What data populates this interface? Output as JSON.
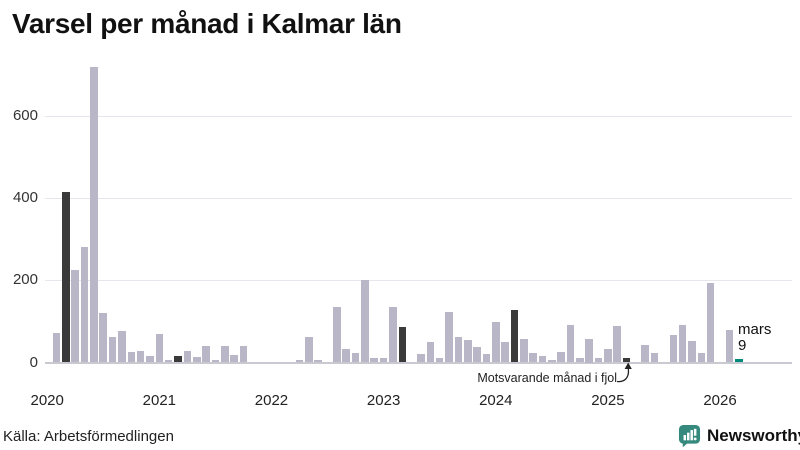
{
  "title": "Varsel per månad i Kalmar län",
  "source": "Källa: Arbetsförmedlingen",
  "annotation": {
    "text": "Motsvarande månad i fjol"
  },
  "latest_label": {
    "month": "mars",
    "value": "9"
  },
  "branding": {
    "name": "Newsworthy",
    "color": "#35897d"
  },
  "colors": {
    "bar_default": "#b9b7c7",
    "bar_dark": "#3a3a3a",
    "bar_teal": "#00897d",
    "gridline": "#e6e6ec",
    "baseline": "#c9c9d2",
    "brand_teal": "#35897d"
  },
  "chart_data": {
    "type": "bar",
    "title": "Varsel per månad i Kalmar län",
    "xlabel": "",
    "ylabel": "",
    "ylim": [
      0,
      740
    ],
    "yticks": [
      0,
      200,
      400,
      600
    ],
    "grid": true,
    "legend": false,
    "x_tick_labels": [
      "2020",
      "2021",
      "2022",
      "2023",
      "2024",
      "2025",
      "2026"
    ],
    "highlight_meaning": {
      "dark": "mars (samma månad) tidigare år",
      "teal": "senaste månaden: mars 2026 = 9"
    },
    "points": [
      {
        "month": "2020-01",
        "value": 0,
        "highlight": null
      },
      {
        "month": "2020-02",
        "value": 72,
        "highlight": null
      },
      {
        "month": "2020-03",
        "value": 415,
        "highlight": "dark"
      },
      {
        "month": "2020-04",
        "value": 226,
        "highlight": null
      },
      {
        "month": "2020-05",
        "value": 281,
        "highlight": null
      },
      {
        "month": "2020-06",
        "value": 720,
        "highlight": null
      },
      {
        "month": "2020-07",
        "value": 120,
        "highlight": null
      },
      {
        "month": "2020-08",
        "value": 63,
        "highlight": null
      },
      {
        "month": "2020-09",
        "value": 76,
        "highlight": null
      },
      {
        "month": "2020-10",
        "value": 25,
        "highlight": null
      },
      {
        "month": "2020-11",
        "value": 28,
        "highlight": null
      },
      {
        "month": "2020-12",
        "value": 17,
        "highlight": null
      },
      {
        "month": "2021-01",
        "value": 70,
        "highlight": null
      },
      {
        "month": "2021-02",
        "value": 7,
        "highlight": null
      },
      {
        "month": "2021-03",
        "value": 15,
        "highlight": "dark"
      },
      {
        "month": "2021-04",
        "value": 28,
        "highlight": null
      },
      {
        "month": "2021-05",
        "value": 13,
        "highlight": null
      },
      {
        "month": "2021-06",
        "value": 39,
        "highlight": null
      },
      {
        "month": "2021-07",
        "value": 5,
        "highlight": null
      },
      {
        "month": "2021-08",
        "value": 39,
        "highlight": null
      },
      {
        "month": "2021-09",
        "value": 18,
        "highlight": null
      },
      {
        "month": "2021-10",
        "value": 40,
        "highlight": null
      },
      {
        "month": "2021-11",
        "value": 0,
        "highlight": null
      },
      {
        "month": "2021-12",
        "value": 0,
        "highlight": null
      },
      {
        "month": "2022-01",
        "value": 0,
        "highlight": null
      },
      {
        "month": "2022-02",
        "value": 0,
        "highlight": null
      },
      {
        "month": "2022-03",
        "value": 0,
        "highlight": null
      },
      {
        "month": "2022-04",
        "value": 6,
        "highlight": null
      },
      {
        "month": "2022-05",
        "value": 61,
        "highlight": null
      },
      {
        "month": "2022-06",
        "value": 7,
        "highlight": null
      },
      {
        "month": "2022-07",
        "value": 0,
        "highlight": null
      },
      {
        "month": "2022-08",
        "value": 136,
        "highlight": null
      },
      {
        "month": "2022-09",
        "value": 34,
        "highlight": null
      },
      {
        "month": "2022-10",
        "value": 24,
        "highlight": null
      },
      {
        "month": "2022-11",
        "value": 202,
        "highlight": null
      },
      {
        "month": "2022-12",
        "value": 11,
        "highlight": null
      },
      {
        "month": "2023-01",
        "value": 11,
        "highlight": null
      },
      {
        "month": "2023-02",
        "value": 134,
        "highlight": null
      },
      {
        "month": "2023-03",
        "value": 86,
        "highlight": "dark"
      },
      {
        "month": "2023-04",
        "value": 0,
        "highlight": null
      },
      {
        "month": "2023-05",
        "value": 20,
        "highlight": null
      },
      {
        "month": "2023-06",
        "value": 51,
        "highlight": null
      },
      {
        "month": "2023-07",
        "value": 12,
        "highlight": null
      },
      {
        "month": "2023-08",
        "value": 122,
        "highlight": null
      },
      {
        "month": "2023-09",
        "value": 63,
        "highlight": null
      },
      {
        "month": "2023-10",
        "value": 54,
        "highlight": null
      },
      {
        "month": "2023-11",
        "value": 38,
        "highlight": null
      },
      {
        "month": "2023-12",
        "value": 21,
        "highlight": null
      },
      {
        "month": "2024-01",
        "value": 99,
        "highlight": null
      },
      {
        "month": "2024-02",
        "value": 49,
        "highlight": null
      },
      {
        "month": "2024-03",
        "value": 127,
        "highlight": "dark"
      },
      {
        "month": "2024-04",
        "value": 56,
        "highlight": null
      },
      {
        "month": "2024-05",
        "value": 22,
        "highlight": null
      },
      {
        "month": "2024-06",
        "value": 16,
        "highlight": null
      },
      {
        "month": "2024-07",
        "value": 6,
        "highlight": null
      },
      {
        "month": "2024-08",
        "value": 25,
        "highlight": null
      },
      {
        "month": "2024-09",
        "value": 92,
        "highlight": null
      },
      {
        "month": "2024-10",
        "value": 11,
        "highlight": null
      },
      {
        "month": "2024-11",
        "value": 58,
        "highlight": null
      },
      {
        "month": "2024-12",
        "value": 10,
        "highlight": null
      },
      {
        "month": "2025-01",
        "value": 33,
        "highlight": null
      },
      {
        "month": "2025-02",
        "value": 88,
        "highlight": null
      },
      {
        "month": "2025-03",
        "value": 10,
        "highlight": "dark"
      },
      {
        "month": "2025-04",
        "value": 0,
        "highlight": null
      },
      {
        "month": "2025-05",
        "value": 42,
        "highlight": null
      },
      {
        "month": "2025-06",
        "value": 22,
        "highlight": null
      },
      {
        "month": "2025-07",
        "value": 0,
        "highlight": null
      },
      {
        "month": "2025-08",
        "value": 67,
        "highlight": null
      },
      {
        "month": "2025-09",
        "value": 91,
        "highlight": null
      },
      {
        "month": "2025-10",
        "value": 53,
        "highlight": null
      },
      {
        "month": "2025-11",
        "value": 24,
        "highlight": null
      },
      {
        "month": "2025-12",
        "value": 193,
        "highlight": null
      },
      {
        "month": "2026-01",
        "value": 0,
        "highlight": null
      },
      {
        "month": "2026-02",
        "value": 80,
        "highlight": null
      },
      {
        "month": "2026-03",
        "value": 9,
        "highlight": "teal"
      }
    ]
  }
}
